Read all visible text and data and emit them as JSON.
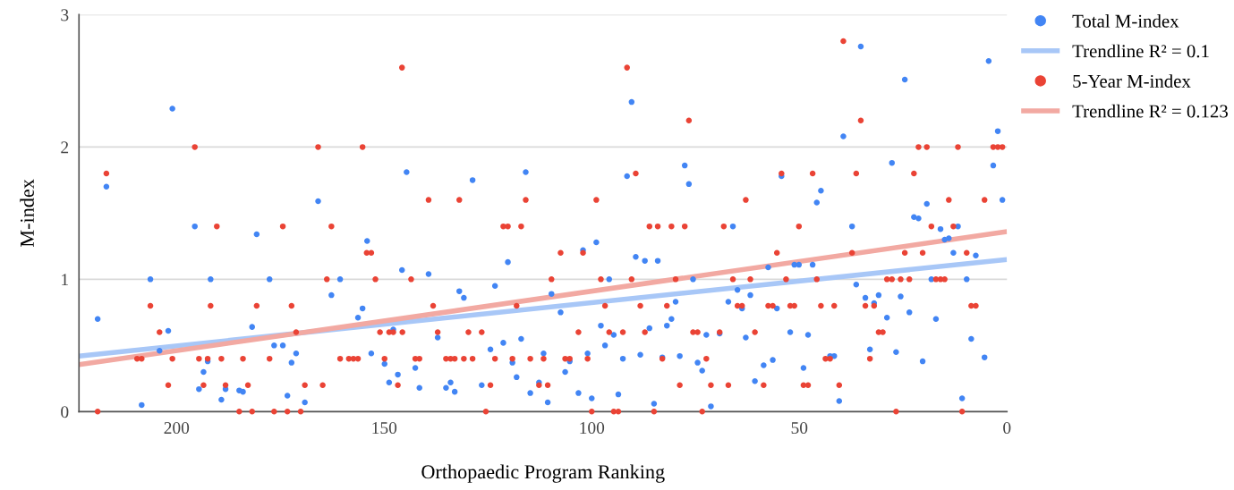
{
  "chart_data": {
    "type": "scatter",
    "xlabel": "Orthopaedic Program Ranking",
    "ylabel": "M-index",
    "xlim": [
      223.5,
      0
    ],
    "xticks": [
      200,
      150,
      100,
      50,
      0
    ],
    "ylim": [
      0,
      3
    ],
    "yticks": [
      0,
      1,
      2,
      3
    ],
    "grid": "y",
    "legend": "top right",
    "series": [
      {
        "name": "Total M-index",
        "marker": "circle",
        "color": "#4285f4",
        "x": [
          201.0,
          216.9,
          195.6,
          206.3,
          191.8,
          219.0,
          202.0,
          204.1,
          192.5,
          193.5,
          194.6,
          188.2,
          184.9,
          189.2,
          208.4,
          165.9,
          180.7,
          154.1,
          177.6,
          160.6,
          162.7,
          155.2,
          156.3,
          181.8,
          147.8,
          176.5,
          174.4,
          171.2,
          153.1,
          172.3,
          149.9,
          148.8,
          184.0,
          173.3,
          169.1,
          144.6,
          128.7,
          115.9,
          120.2,
          145.7,
          139.3,
          123.3,
          131.9,
          130.8,
          109.7,
          137.1,
          117.0,
          121.3,
          124.4,
          111.6,
          119.1,
          142.5,
          146.7,
          118.1,
          134.0,
          112.7,
          141.5,
          135.1,
          133.0,
          126.5,
          114.8,
          110.6,
          90.4,
          77.6,
          76.6,
          91.5,
          98.9,
          102.1,
          89.4,
          87.2,
          84.1,
          95.8,
          75.6,
          79.8,
          107.5,
          80.8,
          97.8,
          81.9,
          86.1,
          94.7,
          72.4,
          96.8,
          101.0,
          88.3,
          78.8,
          105.3,
          92.5,
          83.0,
          74.5,
          73.4,
          106.4,
          103.2,
          100.0,
          93.6,
          85.0,
          35.2,
          39.4,
          54.3,
          44.8,
          45.8,
          66.0,
          37.3,
          57.5,
          51.2,
          50.1,
          46.8,
          36.3,
          64.9,
          61.8,
          67.1,
          63.8,
          55.4,
          69.2,
          62.9,
          52.2,
          47.9,
          42.6,
          41.6,
          58.6,
          56.4,
          49.0,
          60.7,
          40.4,
          71.3,
          4.4,
          24.6,
          2.2,
          27.7,
          3.3,
          1.1,
          19.3,
          22.4,
          21.3,
          11.8,
          16.0,
          15.0,
          14.0,
          12.9,
          7.5,
          18.2,
          9.7,
          34.1,
          32.0,
          30.9,
          25.6,
          23.5,
          28.9,
          17.1,
          8.6,
          33.0,
          26.7,
          20.3,
          5.4,
          10.8
        ],
        "values": [
          2.29,
          1.7,
          1.4,
          1.0,
          1.0,
          0.7,
          0.61,
          0.46,
          0.38,
          0.3,
          0.17,
          0.17,
          0.16,
          0.09,
          0.05,
          1.59,
          1.34,
          1.29,
          1.0,
          1.0,
          0.88,
          0.78,
          0.71,
          0.64,
          0.62,
          0.5,
          0.5,
          0.44,
          0.44,
          0.37,
          0.36,
          0.22,
          0.15,
          0.12,
          0.07,
          1.81,
          1.75,
          1.81,
          1.13,
          1.07,
          1.04,
          0.95,
          0.91,
          0.86,
          0.89,
          0.56,
          0.55,
          0.52,
          0.47,
          0.44,
          0.37,
          0.33,
          0.28,
          0.26,
          0.22,
          0.22,
          0.18,
          0.18,
          0.15,
          0.2,
          0.14,
          0.07,
          2.34,
          1.86,
          1.72,
          1.78,
          1.28,
          1.22,
          1.17,
          1.14,
          1.14,
          1.0,
          1.0,
          0.83,
          0.75,
          0.7,
          0.65,
          0.65,
          0.63,
          0.58,
          0.58,
          0.5,
          0.44,
          0.43,
          0.42,
          0.38,
          0.4,
          0.41,
          0.37,
          0.31,
          0.3,
          0.14,
          0.1,
          0.13,
          0.06,
          2.76,
          2.08,
          1.78,
          1.67,
          1.58,
          1.4,
          1.4,
          1.09,
          1.11,
          1.11,
          1.11,
          0.96,
          0.92,
          0.88,
          0.83,
          0.78,
          0.78,
          0.59,
          0.56,
          0.6,
          0.58,
          0.42,
          0.42,
          0.35,
          0.39,
          0.33,
          0.23,
          0.08,
          0.04,
          2.65,
          2.51,
          2.12,
          1.88,
          1.86,
          1.6,
          1.57,
          1.47,
          1.46,
          1.4,
          1.38,
          1.3,
          1.31,
          1.2,
          1.18,
          1.0,
          1.0,
          0.86,
          0.82,
          0.88,
          0.87,
          0.75,
          0.71,
          0.7,
          0.55,
          0.47,
          0.45,
          0.38,
          0.41,
          0.1
        ]
      },
      {
        "name": "Trendline R² = 0.1",
        "type": "line",
        "color": "#a8c7f7",
        "x": [
          223.5,
          0
        ],
        "values": [
          0.42,
          1.15
        ]
      },
      {
        "name": "5-Year M-index",
        "marker": "circle",
        "color": "#ea4335",
        "x": [
          195.6,
          216.9,
          190.3,
          206.3,
          191.8,
          204.1,
          209.5,
          208.4,
          201.0,
          194.6,
          192.5,
          189.2,
          202.0,
          193.5,
          188.2,
          219.0,
          184.9,
          165.9,
          155.2,
          174.4,
          162.7,
          154.2,
          153.1,
          163.8,
          152.1,
          180.7,
          172.3,
          171.2,
          151.0,
          148.8,
          147.8,
          184.0,
          177.6,
          160.6,
          158.5,
          157.4,
          156.3,
          149.9,
          182.8,
          169.1,
          164.8,
          181.8,
          176.5,
          173.3,
          170.1,
          145.7,
          139.3,
          131.9,
          115.9,
          121.3,
          120.2,
          117.0,
          143.5,
          109.7,
          138.2,
          118.1,
          145.6,
          137.1,
          129.7,
          126.5,
          142.5,
          141.5,
          135.1,
          134.0,
          133.0,
          130.8,
          128.7,
          123.3,
          119.1,
          114.8,
          111.6,
          146.7,
          124.4,
          112.7,
          110.6,
          125.5,
          91.5,
          76.6,
          89.4,
          98.9,
          86.1,
          84.1,
          80.8,
          77.6,
          107.5,
          102.1,
          97.8,
          90.4,
          79.8,
          96.8,
          88.3,
          81.9,
          103.2,
          95.8,
          92.5,
          87.2,
          75.6,
          74.5,
          106.4,
          105.3,
          101.0,
          83.0,
          72.4,
          78.8,
          100.0,
          94.7,
          93.6,
          85.0,
          73.4,
          39.4,
          35.2,
          54.3,
          46.8,
          36.3,
          62.9,
          68.2,
          50.1,
          55.4,
          37.3,
          66.0,
          61.8,
          53.2,
          45.8,
          64.9,
          63.8,
          57.5,
          56.4,
          52.2,
          51.2,
          44.8,
          41.6,
          69.2,
          60.7,
          43.7,
          42.6,
          71.3,
          67.1,
          58.6,
          49.0,
          47.9,
          40.4,
          21.3,
          19.3,
          11.8,
          3.3,
          2.2,
          1.1,
          22.4,
          14.0,
          5.4,
          18.2,
          12.9,
          24.6,
          20.3,
          9.7,
          28.9,
          27.7,
          25.6,
          23.5,
          17.1,
          16.0,
          15.0,
          34.1,
          32.0,
          8.6,
          7.5,
          30.9,
          29.9,
          33.0,
          26.7,
          10.8
        ],
        "values": [
          2.0,
          1.8,
          1.4,
          0.8,
          0.8,
          0.6,
          0.4,
          0.4,
          0.4,
          0.4,
          0.4,
          0.4,
          0.2,
          0.2,
          0.2,
          0,
          0,
          2.0,
          2.0,
          1.4,
          1.4,
          1.2,
          1.2,
          1.0,
          1.0,
          0.8,
          0.8,
          0.6,
          0.6,
          0.6,
          0.6,
          0.4,
          0.4,
          0.4,
          0.4,
          0.4,
          0.4,
          0.4,
          0.2,
          0.2,
          0.2,
          0,
          0,
          0,
          0,
          2.6,
          1.6,
          1.6,
          1.6,
          1.4,
          1.4,
          1.4,
          1.0,
          1.0,
          0.8,
          0.8,
          0.6,
          0.6,
          0.6,
          0.6,
          0.4,
          0.4,
          0.4,
          0.4,
          0.4,
          0.4,
          0.4,
          0.4,
          0.4,
          0.4,
          0.4,
          0.2,
          0.2,
          0.2,
          0.2,
          0,
          2.6,
          2.2,
          1.8,
          1.6,
          1.4,
          1.4,
          1.4,
          1.4,
          1.2,
          1.2,
          1.0,
          1.0,
          1.0,
          0.8,
          0.8,
          0.8,
          0.6,
          0.6,
          0.6,
          0.6,
          0.6,
          0.6,
          0.4,
          0.4,
          0.4,
          0.4,
          0.4,
          0.2,
          0,
          0,
          0,
          0,
          0,
          2.8,
          2.2,
          1.8,
          1.8,
          1.8,
          1.6,
          1.4,
          1.4,
          1.2,
          1.2,
          1.0,
          1.0,
          1.0,
          1.0,
          0.8,
          0.8,
          0.8,
          0.8,
          0.8,
          0.8,
          0.8,
          0.8,
          0.6,
          0.6,
          0.4,
          0.4,
          0.2,
          0.2,
          0.2,
          0.2,
          0.2,
          0.2,
          2.0,
          2.0,
          2.0,
          2.0,
          2.0,
          2.0,
          1.8,
          1.6,
          1.6,
          1.4,
          1.4,
          1.2,
          1.2,
          1.2,
          1.0,
          1.0,
          1.0,
          1.0,
          1.0,
          1.0,
          1.0,
          0.8,
          0.8,
          0.8,
          0.8,
          0.6,
          0.6,
          0.4,
          0,
          0
        ]
      },
      {
        "name": "Trendline R² = 0.123",
        "type": "line",
        "color": "#f2a9a2",
        "x": [
          223.5,
          0
        ],
        "values": [
          0.355,
          1.36
        ]
      }
    ]
  }
}
